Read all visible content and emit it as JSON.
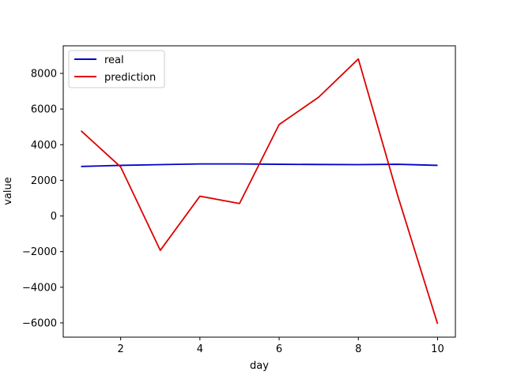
{
  "chart_data": {
    "type": "line",
    "title": "",
    "xlabel": "day",
    "ylabel": "value",
    "xlim": [
      0.55,
      10.45
    ],
    "ylim": [
      -6800,
      9550
    ],
    "xticks": [
      2,
      4,
      6,
      8,
      10
    ],
    "yticks": [
      -6000,
      -4000,
      -2000,
      0,
      2000,
      4000,
      6000,
      8000
    ],
    "x": [
      1,
      2,
      3,
      4,
      5,
      6,
      7,
      8,
      9,
      10
    ],
    "series": [
      {
        "name": "real",
        "color": "#0000cc",
        "values": [
          2780,
          2840,
          2880,
          2920,
          2920,
          2900,
          2890,
          2880,
          2900,
          2840
        ]
      },
      {
        "name": "prediction",
        "color": "#dd0000",
        "values": [
          4780,
          2750,
          -1930,
          1110,
          700,
          5130,
          6670,
          8810,
          1100,
          -6050
        ]
      }
    ],
    "grid": false,
    "legend_position": "top-left"
  }
}
